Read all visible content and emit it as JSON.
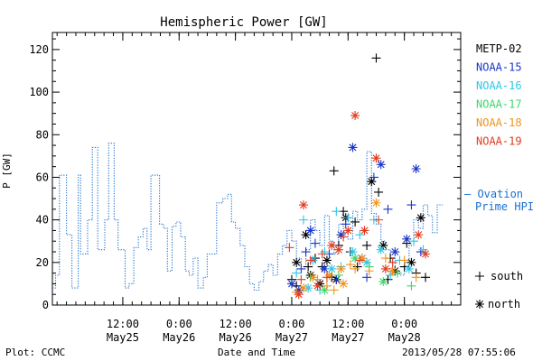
{
  "footer": {
    "plot_credit": "Plot: CCMC",
    "timestamp": "2013/05/28 07:55:06"
  },
  "chart_data": {
    "type": "scatter",
    "title": "Hemispheric Power [GW]",
    "xlabel": "Date and Time",
    "ylabel": "P [GW]",
    "x_range": [
      "2013-05-24 21:00",
      "2013-05-28 12:00"
    ],
    "ylim": [
      0,
      128
    ],
    "y_ticks": [
      0,
      20,
      40,
      60,
      80,
      100,
      120
    ],
    "x_ticks": [
      {
        "time": "2013-05-25 12:00",
        "top": "12:00",
        "bottom": "May25"
      },
      {
        "time": "2013-05-26 00:00",
        "top": "0:00",
        "bottom": "May26"
      },
      {
        "time": "2013-05-26 12:00",
        "top": "12:00",
        "bottom": "May26"
      },
      {
        "time": "2013-05-27 00:00",
        "top": "0:00",
        "bottom": "May27"
      },
      {
        "time": "2013-05-27 12:00",
        "top": "12:00",
        "bottom": "May27"
      },
      {
        "time": "2013-05-28 00:00",
        "top": "0:00",
        "bottom": "May28"
      }
    ],
    "grid": false,
    "legend_position": "right",
    "legend_markers": {
      "plus": "south",
      "star": "north"
    },
    "series": [
      {
        "name": "METP-02",
        "color": "#000000",
        "points": [
          [
            "2013-05-27 00:00",
            12,
            "plus"
          ],
          [
            "2013-05-27 01:00",
            20,
            "star"
          ],
          [
            "2013-05-27 01:00",
            9,
            "plus"
          ],
          [
            "2013-05-27 03:00",
            33,
            "star"
          ],
          [
            "2013-05-27 03:30",
            18,
            "plus"
          ],
          [
            "2013-05-27 04:00",
            14,
            "star"
          ],
          [
            "2013-05-27 05:00",
            22,
            "plus"
          ],
          [
            "2013-05-27 06:00",
            10,
            "star"
          ],
          [
            "2013-05-27 06:30",
            18,
            "plus"
          ],
          [
            "2013-05-27 07:30",
            21,
            "star"
          ],
          [
            "2013-05-27 08:30",
            13,
            "plus"
          ],
          [
            "2013-05-27 09:00",
            63,
            "plus"
          ],
          [
            "2013-05-27 09:30",
            12,
            "star"
          ],
          [
            "2013-05-27 10:00",
            28,
            "plus"
          ],
          [
            "2013-05-27 11:00",
            44,
            "plus"
          ],
          [
            "2013-05-27 11:30",
            41,
            "star"
          ],
          [
            "2013-05-27 12:30",
            25,
            "plus"
          ],
          [
            "2013-05-27 13:30",
            39,
            "plus"
          ],
          [
            "2013-05-27 14:00",
            18,
            "plus"
          ],
          [
            "2013-05-27 16:00",
            28,
            "plus"
          ],
          [
            "2013-05-27 17:00",
            58,
            "star"
          ],
          [
            "2013-05-27 18:00",
            116,
            "plus"
          ],
          [
            "2013-05-27 18:30",
            53,
            "plus"
          ],
          [
            "2013-05-27 19:30",
            28,
            "star"
          ],
          [
            "2013-05-27 20:30",
            12,
            "plus"
          ],
          [
            "2013-05-27 21:00",
            22,
            "plus"
          ],
          [
            "2013-05-27 22:00",
            16,
            "star"
          ],
          [
            "2013-05-28 00:00",
            18,
            "plus"
          ],
          [
            "2013-05-28 00:30",
            29,
            "plus"
          ],
          [
            "2013-05-28 01:30",
            20,
            "star"
          ],
          [
            "2013-05-28 02:30",
            15,
            "plus"
          ],
          [
            "2013-05-28 03:30",
            41,
            "star"
          ],
          [
            "2013-05-28 04:30",
            13,
            "plus"
          ]
        ]
      },
      {
        "name": "NOAA-15",
        "color": "#1a35c8",
        "points": [
          [
            "2013-05-27 00:00",
            10,
            "star"
          ],
          [
            "2013-05-27 01:30",
            7,
            "star"
          ],
          [
            "2013-05-27 02:00",
            17,
            "plus"
          ],
          [
            "2013-05-27 03:00",
            25,
            "plus"
          ],
          [
            "2013-05-27 04:00",
            35,
            "star"
          ],
          [
            "2013-05-27 05:00",
            29,
            "plus"
          ],
          [
            "2013-05-27 07:00",
            17,
            "star"
          ],
          [
            "2013-05-27 08:00",
            24,
            "plus"
          ],
          [
            "2013-05-27 09:30",
            12,
            "plus"
          ],
          [
            "2013-05-27 10:30",
            33,
            "star"
          ],
          [
            "2013-05-27 11:30",
            38,
            "plus"
          ],
          [
            "2013-05-27 13:00",
            74,
            "star"
          ],
          [
            "2013-05-27 15:00",
            22,
            "star"
          ],
          [
            "2013-05-27 16:00",
            13,
            "plus"
          ],
          [
            "2013-05-27 17:30",
            60,
            "plus"
          ],
          [
            "2013-05-27 19:00",
            66,
            "star"
          ],
          [
            "2013-05-27 20:30",
            45,
            "plus"
          ],
          [
            "2013-05-27 22:00",
            25,
            "star"
          ],
          [
            "2013-05-28 00:30",
            31,
            "star"
          ],
          [
            "2013-05-28 01:30",
            47,
            "plus"
          ],
          [
            "2013-05-28 02:30",
            64,
            "star"
          ],
          [
            "2013-05-28 03:30",
            25,
            "plus"
          ]
        ]
      },
      {
        "name": "NOAA-16",
        "color": "#2cc6e8",
        "points": [
          [
            "2013-05-27 01:00",
            15,
            "plus"
          ],
          [
            "2013-05-27 02:30",
            40,
            "plus"
          ],
          [
            "2013-05-27 03:30",
            8,
            "star"
          ],
          [
            "2013-05-27 04:30",
            21,
            "star"
          ],
          [
            "2013-05-27 06:00",
            7,
            "plus"
          ],
          [
            "2013-05-27 07:00",
            25,
            "plus"
          ],
          [
            "2013-05-27 08:30",
            17,
            "star"
          ],
          [
            "2013-05-27 09:30",
            44,
            "plus"
          ],
          [
            "2013-05-27 10:30",
            18,
            "plus"
          ],
          [
            "2013-05-27 12:00",
            41,
            "plus"
          ],
          [
            "2013-05-27 13:00",
            25,
            "star"
          ],
          [
            "2013-05-27 14:30",
            33,
            "plus"
          ],
          [
            "2013-05-27 16:00",
            20,
            "star"
          ],
          [
            "2013-05-27 17:30",
            40,
            "plus"
          ],
          [
            "2013-05-27 19:00",
            26,
            "star"
          ],
          [
            "2013-05-27 21:00",
            14,
            "plus"
          ],
          [
            "2013-05-27 23:00",
            21,
            "plus"
          ],
          [
            "2013-05-28 01:00",
            17,
            "star"
          ],
          [
            "2013-05-28 02:00",
            30,
            "plus"
          ],
          [
            "2013-05-28 04:00",
            26,
            "plus"
          ]
        ]
      },
      {
        "name": "NOAA-17",
        "color": "#3ed66c",
        "points": [
          [
            "2013-05-27 04:00",
            13,
            "plus"
          ],
          [
            "2013-05-27 07:00",
            7,
            "star"
          ],
          [
            "2013-05-27 10:00",
            14,
            "plus"
          ],
          [
            "2013-05-27 13:30",
            22,
            "star"
          ],
          [
            "2013-05-27 16:30",
            18,
            "plus"
          ],
          [
            "2013-05-27 19:30",
            11,
            "star"
          ],
          [
            "2013-05-27 22:30",
            15,
            "plus"
          ],
          [
            "2013-05-28 01:30",
            9,
            "plus"
          ]
        ]
      },
      {
        "name": "NOAA-18",
        "color": "#f0941e",
        "points": [
          [
            "2013-05-27 01:00",
            6,
            "plus"
          ],
          [
            "2013-05-27 02:30",
            8,
            "star"
          ],
          [
            "2013-05-27 04:30",
            13,
            "star"
          ],
          [
            "2013-05-27 05:30",
            12,
            "plus"
          ],
          [
            "2013-05-27 07:30",
            9,
            "plus"
          ],
          [
            "2013-05-27 08:00",
            14,
            "star"
          ],
          [
            "2013-05-27 09:00",
            7,
            "plus"
          ],
          [
            "2013-05-27 10:30",
            17,
            "star"
          ],
          [
            "2013-05-27 11:00",
            10,
            "star"
          ],
          [
            "2013-05-27 12:30",
            19,
            "plus"
          ],
          [
            "2013-05-27 13:30",
            17,
            "plus"
          ],
          [
            "2013-05-27 15:00",
            22,
            "star"
          ],
          [
            "2013-05-27 16:30",
            16,
            "plus"
          ],
          [
            "2013-05-27 18:00",
            48,
            "star"
          ],
          [
            "2013-05-27 20:00",
            22,
            "plus"
          ],
          [
            "2013-05-27 21:30",
            16,
            "star"
          ],
          [
            "2013-05-28 00:00",
            21,
            "plus"
          ],
          [
            "2013-05-28 02:30",
            13,
            "plus"
          ]
        ]
      },
      {
        "name": "NOAA-19",
        "color": "#e23a1e",
        "points": [
          [
            "2013-05-26 23:30",
            27,
            "plus"
          ],
          [
            "2013-05-27 01:30",
            5,
            "star"
          ],
          [
            "2013-05-27 02:00",
            12,
            "plus"
          ],
          [
            "2013-05-27 02:30",
            47,
            "star"
          ],
          [
            "2013-05-27 04:00",
            21,
            "plus"
          ],
          [
            "2013-05-27 05:30",
            9,
            "star"
          ],
          [
            "2013-05-27 06:30",
            24,
            "plus"
          ],
          [
            "2013-05-27 07:30",
            13,
            "plus"
          ],
          [
            "2013-05-27 08:30",
            28,
            "star"
          ],
          [
            "2013-05-27 10:00",
            26,
            "star"
          ],
          [
            "2013-05-27 11:00",
            32,
            "plus"
          ],
          [
            "2013-05-27 12:00",
            35,
            "star"
          ],
          [
            "2013-05-27 13:30",
            89,
            "star"
          ],
          [
            "2013-05-27 14:30",
            21,
            "plus"
          ],
          [
            "2013-05-27 15:30",
            35,
            "star"
          ],
          [
            "2013-05-27 18:00",
            69,
            "star"
          ],
          [
            "2013-05-27 18:30",
            40,
            "plus"
          ],
          [
            "2013-05-27 20:00",
            17,
            "star"
          ],
          [
            "2013-05-27 21:30",
            20,
            "plus"
          ],
          [
            "2013-05-28 03:00",
            33,
            "star"
          ],
          [
            "2013-05-28 04:30",
            24,
            "star"
          ]
        ]
      }
    ],
    "ovation": {
      "name": "— Ovation Prime HPI",
      "color": "#1a6fd1",
      "steps": [
        [
          "2013-05-24 21:00",
          8
        ],
        [
          "2013-05-24 21:40",
          14
        ],
        [
          "2013-05-24 22:30",
          61
        ],
        [
          "2013-05-25 00:00",
          33
        ],
        [
          "2013-05-25 01:10",
          8
        ],
        [
          "2013-05-25 02:30",
          61
        ],
        [
          "2013-05-25 03:00",
          24
        ],
        [
          "2013-05-25 04:30",
          40
        ],
        [
          "2013-05-25 05:30",
          74
        ],
        [
          "2013-05-25 06:40",
          26
        ],
        [
          "2013-05-25 08:10",
          40
        ],
        [
          "2013-05-25 09:00",
          76
        ],
        [
          "2013-05-25 10:10",
          40
        ],
        [
          "2013-05-25 11:00",
          26
        ],
        [
          "2013-05-25 12:30",
          8
        ],
        [
          "2013-05-25 13:20",
          10
        ],
        [
          "2013-05-25 14:20",
          27
        ],
        [
          "2013-05-25 15:20",
          32
        ],
        [
          "2013-05-25 16:20",
          36
        ],
        [
          "2013-05-25 17:10",
          26
        ],
        [
          "2013-05-25 18:00",
          61
        ],
        [
          "2013-05-25 19:50",
          38
        ],
        [
          "2013-05-25 20:40",
          36
        ],
        [
          "2013-05-25 21:30",
          16
        ],
        [
          "2013-05-25 22:30",
          37
        ],
        [
          "2013-05-25 23:20",
          39
        ],
        [
          "2013-05-26 00:20",
          32
        ],
        [
          "2013-05-26 01:20",
          16
        ],
        [
          "2013-05-26 02:10",
          14
        ],
        [
          "2013-05-26 03:00",
          22
        ],
        [
          "2013-05-26 04:00",
          8
        ],
        [
          "2013-05-26 05:10",
          13
        ],
        [
          "2013-05-26 06:00",
          24
        ],
        [
          "2013-05-26 08:00",
          48
        ],
        [
          "2013-05-26 09:20",
          50
        ],
        [
          "2013-05-26 10:20",
          52
        ],
        [
          "2013-05-26 11:10",
          39
        ],
        [
          "2013-05-26 12:00",
          36
        ],
        [
          "2013-05-26 13:00",
          28
        ],
        [
          "2013-05-26 14:00",
          18
        ],
        [
          "2013-05-26 15:00",
          10
        ],
        [
          "2013-05-26 16:00",
          7
        ],
        [
          "2013-05-26 17:00",
          11
        ],
        [
          "2013-05-26 18:00",
          16
        ],
        [
          "2013-05-26 19:00",
          19
        ],
        [
          "2013-05-26 20:00",
          14
        ],
        [
          "2013-05-26 21:00",
          24
        ],
        [
          "2013-05-26 22:00",
          28
        ],
        [
          "2013-05-26 23:00",
          35
        ],
        [
          "2013-05-27 00:00",
          30
        ],
        [
          "2013-05-27 01:00",
          22
        ],
        [
          "2013-05-27 02:00",
          18
        ],
        [
          "2013-05-27 03:00",
          26
        ],
        [
          "2013-05-27 04:00",
          40
        ],
        [
          "2013-05-27 05:00",
          35
        ],
        [
          "2013-05-27 06:00",
          28
        ],
        [
          "2013-05-27 07:00",
          42
        ],
        [
          "2013-05-27 08:00",
          30
        ],
        [
          "2013-05-27 09:00",
          24
        ],
        [
          "2013-05-27 10:00",
          38
        ],
        [
          "2013-05-27 11:00",
          34
        ],
        [
          "2013-05-27 12:00",
          31
        ],
        [
          "2013-05-27 13:00",
          44
        ],
        [
          "2013-05-27 14:00",
          40
        ],
        [
          "2013-05-27 15:00",
          45
        ],
        [
          "2013-05-27 16:00",
          72
        ],
        [
          "2013-05-27 17:00",
          43
        ],
        [
          "2013-05-27 18:00",
          38
        ],
        [
          "2013-05-27 19:00",
          30
        ],
        [
          "2013-05-27 20:00",
          26
        ],
        [
          "2013-05-27 21:00",
          22
        ],
        [
          "2013-05-27 22:00",
          16
        ],
        [
          "2013-05-27 23:00",
          14
        ],
        [
          "2013-05-28 00:00",
          20
        ],
        [
          "2013-05-28 01:00",
          28
        ],
        [
          "2013-05-28 02:00",
          40
        ],
        [
          "2013-05-28 03:00",
          36
        ],
        [
          "2013-05-28 04:00",
          47
        ],
        [
          "2013-05-28 05:00",
          42
        ],
        [
          "2013-05-28 06:00",
          34
        ],
        [
          "2013-05-28 07:00",
          47
        ]
      ]
    }
  }
}
